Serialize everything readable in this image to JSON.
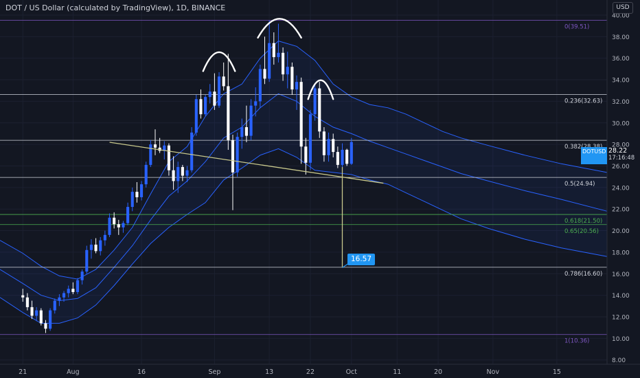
{
  "header": {
    "title": "DOT / US Dollar (calculated by TradingView), 1D, BINANCE",
    "currency": "USD"
  },
  "price_tag": {
    "symbol": "DOTUSD",
    "last_price": "28.22",
    "countdown": "17:16:48"
  },
  "target_callout": {
    "label": "16.57"
  },
  "colors": {
    "background": "#131722",
    "up": "#2962ff",
    "down": "#ffffff",
    "band": "#2962ff",
    "neckline": "#c8c88c",
    "fib_line": "#d1d4dc",
    "fib_green": "#4caf50",
    "fib_purple": "#7e57c2",
    "accent": "#2196f3"
  },
  "chart_data": {
    "type": "candlestick",
    "title": "DOT / US Dollar (calculated by TradingView), 1D, BINANCE",
    "y_axis": {
      "ticks": [
        "40.00",
        "38.00",
        "36.00",
        "34.00",
        "32.00",
        "30.00",
        "28.00",
        "26.00",
        "24.00",
        "22.00",
        "20.00",
        "18.00",
        "16.00",
        "14.00",
        "12.00",
        "10.00",
        "8.00"
      ],
      "range": [
        7.6,
        41.4
      ],
      "label": "USD"
    },
    "x_axis": {
      "ticks": [
        {
          "label": "21",
          "day": 0
        },
        {
          "label": "Aug",
          "day": 11
        },
        {
          "label": "16",
          "day": 26
        },
        {
          "label": "Sep",
          "day": 42
        },
        {
          "label": "13",
          "day": 54
        },
        {
          "label": "22",
          "day": 63
        },
        {
          "label": "Oct",
          "day": 72
        },
        {
          "label": "11",
          "day": 82
        },
        {
          "label": "20",
          "day": 91
        },
        {
          "label": "Nov",
          "day": 103
        },
        {
          "label": "15",
          "day": 117
        }
      ],
      "range_days": [
        -5,
        128
      ]
    },
    "fib_levels": [
      {
        "label": "0(39.51)",
        "value": 39.51,
        "style": "purple"
      },
      {
        "label": "0.236(32.63)",
        "value": 32.63,
        "style": "white"
      },
      {
        "label": "0.382(28.38)",
        "value": 28.38,
        "style": "white"
      },
      {
        "label": "0.5(24.94)",
        "value": 24.94,
        "style": "white"
      },
      {
        "label": "0.618(21.50)",
        "value": 21.5,
        "style": "green"
      },
      {
        "label": "0.65(20.56)",
        "value": 20.56,
        "style": "green"
      },
      {
        "label": "0.786(16.60)",
        "value": 16.6,
        "style": "white"
      },
      {
        "label": "1(10.36)",
        "value": 10.36,
        "style": "purple"
      }
    ],
    "neckline": {
      "start": {
        "day": 19,
        "value": 28.2
      },
      "end": {
        "day": 79,
        "value": 24.4
      }
    },
    "target_drop": {
      "day": 70,
      "from": 25.9,
      "to": 16.57
    },
    "candles": [
      {
        "o": 14.0,
        "h": 14.6,
        "l": 13.4,
        "c": 13.8
      },
      {
        "o": 13.8,
        "h": 14.2,
        "l": 12.6,
        "c": 12.9
      },
      {
        "o": 12.9,
        "h": 13.5,
        "l": 11.8,
        "c": 12.1
      },
      {
        "o": 12.1,
        "h": 12.9,
        "l": 11.6,
        "c": 12.6
      },
      {
        "o": 12.6,
        "h": 12.8,
        "l": 11.2,
        "c": 11.4
      },
      {
        "o": 11.4,
        "h": 11.7,
        "l": 10.5,
        "c": 10.9
      },
      {
        "o": 10.9,
        "h": 12.8,
        "l": 10.7,
        "c": 12.6
      },
      {
        "o": 12.6,
        "h": 13.7,
        "l": 12.3,
        "c": 13.5
      },
      {
        "o": 13.5,
        "h": 14.1,
        "l": 13.0,
        "c": 13.8
      },
      {
        "o": 13.8,
        "h": 14.4,
        "l": 13.4,
        "c": 14.2
      },
      {
        "o": 14.2,
        "h": 14.9,
        "l": 13.8,
        "c": 14.6
      },
      {
        "o": 14.6,
        "h": 15.2,
        "l": 14.1,
        "c": 14.3
      },
      {
        "o": 14.3,
        "h": 15.6,
        "l": 14.1,
        "c": 15.4
      },
      {
        "o": 15.4,
        "h": 16.4,
        "l": 15.0,
        "c": 16.2
      },
      {
        "o": 16.2,
        "h": 18.6,
        "l": 16.0,
        "c": 18.2
      },
      {
        "o": 18.2,
        "h": 19.2,
        "l": 17.4,
        "c": 18.7
      },
      {
        "o": 18.7,
        "h": 19.3,
        "l": 17.9,
        "c": 18.1
      },
      {
        "o": 18.1,
        "h": 19.4,
        "l": 17.7,
        "c": 19.1
      },
      {
        "o": 19.1,
        "h": 20.0,
        "l": 18.6,
        "c": 19.6
      },
      {
        "o": 19.6,
        "h": 21.6,
        "l": 19.4,
        "c": 21.2
      },
      {
        "o": 21.2,
        "h": 21.7,
        "l": 20.2,
        "c": 20.6
      },
      {
        "o": 20.6,
        "h": 21.0,
        "l": 19.6,
        "c": 20.3
      },
      {
        "o": 20.3,
        "h": 20.9,
        "l": 19.8,
        "c": 20.7
      },
      {
        "o": 20.7,
        "h": 22.6,
        "l": 20.5,
        "c": 22.2
      },
      {
        "o": 22.2,
        "h": 24.0,
        "l": 21.8,
        "c": 23.6
      },
      {
        "o": 23.6,
        "h": 24.5,
        "l": 22.6,
        "c": 23.1
      },
      {
        "o": 23.1,
        "h": 24.6,
        "l": 22.8,
        "c": 24.3
      },
      {
        "o": 24.3,
        "h": 26.4,
        "l": 24.0,
        "c": 26.1
      },
      {
        "o": 26.1,
        "h": 28.4,
        "l": 25.9,
        "c": 28.0
      },
      {
        "o": 28.0,
        "h": 29.4,
        "l": 27.0,
        "c": 27.7
      },
      {
        "o": 27.7,
        "h": 28.6,
        "l": 27.2,
        "c": 27.4
      },
      {
        "o": 27.4,
        "h": 28.3,
        "l": 26.6,
        "c": 27.9
      },
      {
        "o": 27.9,
        "h": 28.1,
        "l": 25.1,
        "c": 25.6
      },
      {
        "o": 25.6,
        "h": 26.9,
        "l": 23.8,
        "c": 24.6
      },
      {
        "o": 24.6,
        "h": 26.4,
        "l": 23.5,
        "c": 25.9
      },
      {
        "o": 25.9,
        "h": 26.1,
        "l": 24.6,
        "c": 25.1
      },
      {
        "o": 25.1,
        "h": 26.0,
        "l": 24.5,
        "c": 25.6
      },
      {
        "o": 25.6,
        "h": 29.6,
        "l": 25.4,
        "c": 29.1
      },
      {
        "o": 29.1,
        "h": 32.6,
        "l": 28.8,
        "c": 32.2
      },
      {
        "o": 32.2,
        "h": 33.1,
        "l": 30.4,
        "c": 30.8
      },
      {
        "o": 30.8,
        "h": 32.6,
        "l": 30.6,
        "c": 32.4
      },
      {
        "o": 32.4,
        "h": 33.6,
        "l": 31.8,
        "c": 32.9
      },
      {
        "o": 32.9,
        "h": 34.6,
        "l": 31.2,
        "c": 31.6
      },
      {
        "o": 31.6,
        "h": 34.7,
        "l": 31.4,
        "c": 34.3
      },
      {
        "o": 34.3,
        "h": 35.6,
        "l": 33.0,
        "c": 33.4
      },
      {
        "o": 33.4,
        "h": 36.4,
        "l": 27.5,
        "c": 28.4
      },
      {
        "o": 28.4,
        "h": 28.9,
        "l": 21.9,
        "c": 25.4
      },
      {
        "o": 25.4,
        "h": 29.1,
        "l": 25.0,
        "c": 28.7
      },
      {
        "o": 28.7,
        "h": 30.4,
        "l": 27.6,
        "c": 29.6
      },
      {
        "o": 29.6,
        "h": 31.6,
        "l": 28.2,
        "c": 28.8
      },
      {
        "o": 28.8,
        "h": 32.2,
        "l": 28.4,
        "c": 31.6
      },
      {
        "o": 31.6,
        "h": 33.3,
        "l": 30.6,
        "c": 32.0
      },
      {
        "o": 32.0,
        "h": 35.4,
        "l": 31.4,
        "c": 35.0
      },
      {
        "o": 35.0,
        "h": 38.0,
        "l": 33.6,
        "c": 34.1
      },
      {
        "o": 34.1,
        "h": 39.5,
        "l": 33.8,
        "c": 37.4
      },
      {
        "o": 37.4,
        "h": 38.4,
        "l": 35.4,
        "c": 36.1
      },
      {
        "o": 36.1,
        "h": 39.2,
        "l": 35.6,
        "c": 36.5
      },
      {
        "o": 36.5,
        "h": 37.0,
        "l": 33.9,
        "c": 34.5
      },
      {
        "o": 34.5,
        "h": 36.6,
        "l": 33.2,
        "c": 35.2
      },
      {
        "o": 35.2,
        "h": 35.6,
        "l": 32.6,
        "c": 33.1
      },
      {
        "o": 33.1,
        "h": 34.4,
        "l": 31.2,
        "c": 33.8
      },
      {
        "o": 33.8,
        "h": 34.2,
        "l": 26.2,
        "c": 27.8
      },
      {
        "o": 27.8,
        "h": 28.6,
        "l": 25.2,
        "c": 26.3
      },
      {
        "o": 26.3,
        "h": 31.2,
        "l": 25.6,
        "c": 30.8
      },
      {
        "o": 30.8,
        "h": 33.6,
        "l": 30.2,
        "c": 33.2
      },
      {
        "o": 33.2,
        "h": 33.8,
        "l": 28.6,
        "c": 29.2
      },
      {
        "o": 29.2,
        "h": 29.6,
        "l": 26.4,
        "c": 27.0
      },
      {
        "o": 27.0,
        "h": 29.1,
        "l": 26.4,
        "c": 28.5
      },
      {
        "o": 28.5,
        "h": 29.0,
        "l": 26.8,
        "c": 27.3
      },
      {
        "o": 27.3,
        "h": 27.8,
        "l": 25.8,
        "c": 26.1
      },
      {
        "o": 26.1,
        "h": 28.1,
        "l": 25.9,
        "c": 27.5
      },
      {
        "o": 27.5,
        "h": 27.6,
        "l": 26.0,
        "c": 26.2
      },
      {
        "o": 26.2,
        "h": 28.6,
        "l": 26.1,
        "c": 28.22
      }
    ],
    "bands": {
      "upper": [
        [
          -5,
          19.1
        ],
        [
          0,
          17.9
        ],
        [
          4,
          16.7
        ],
        [
          8,
          15.8
        ],
        [
          12,
          15.5
        ],
        [
          16,
          16.4
        ],
        [
          20,
          18.2
        ],
        [
          24,
          20.3
        ],
        [
          28,
          23.4
        ],
        [
          32,
          26.4
        ],
        [
          36,
          27.8
        ],
        [
          40,
          30.6
        ],
        [
          44,
          32.7
        ],
        [
          48,
          33.6
        ],
        [
          52,
          36.0
        ],
        [
          56,
          37.6
        ],
        [
          60,
          37.1
        ],
        [
          64,
          35.8
        ],
        [
          68,
          33.6
        ],
        [
          72,
          32.4
        ],
        [
          76,
          31.7
        ],
        [
          80,
          31.4
        ],
        [
          84,
          30.8
        ],
        [
          88,
          30.0
        ],
        [
          92,
          29.2
        ],
        [
          96,
          28.6
        ],
        [
          102,
          27.9
        ],
        [
          110,
          27.0
        ],
        [
          118,
          26.2
        ],
        [
          128,
          25.4
        ]
      ],
      "middle": [
        [
          -5,
          16.4
        ],
        [
          0,
          15.1
        ],
        [
          4,
          14.0
        ],
        [
          8,
          13.5
        ],
        [
          12,
          13.7
        ],
        [
          16,
          14.7
        ],
        [
          20,
          16.6
        ],
        [
          24,
          18.6
        ],
        [
          28,
          21.0
        ],
        [
          32,
          23.2
        ],
        [
          36,
          24.6
        ],
        [
          40,
          26.4
        ],
        [
          44,
          28.6
        ],
        [
          48,
          29.6
        ],
        [
          52,
          31.4
        ],
        [
          56,
          32.7
        ],
        [
          60,
          32.0
        ],
        [
          64,
          30.6
        ],
        [
          68,
          29.6
        ],
        [
          72,
          29.0
        ],
        [
          76,
          28.3
        ],
        [
          80,
          27.7
        ],
        [
          84,
          27.1
        ],
        [
          88,
          26.5
        ],
        [
          92,
          25.9
        ],
        [
          96,
          25.3
        ],
        [
          102,
          24.6
        ],
        [
          110,
          23.7
        ],
        [
          118,
          22.9
        ],
        [
          128,
          21.8
        ]
      ],
      "lower": [
        [
          -5,
          13.8
        ],
        [
          0,
          12.4
        ],
        [
          4,
          11.4
        ],
        [
          8,
          11.4
        ],
        [
          12,
          11.9
        ],
        [
          16,
          13.1
        ],
        [
          20,
          14.9
        ],
        [
          24,
          16.9
        ],
        [
          28,
          18.8
        ],
        [
          32,
          20.3
        ],
        [
          36,
          21.5
        ],
        [
          40,
          22.6
        ],
        [
          44,
          24.7
        ],
        [
          48,
          25.8
        ],
        [
          52,
          27.0
        ],
        [
          56,
          27.6
        ],
        [
          60,
          26.8
        ],
        [
          64,
          25.6
        ],
        [
          68,
          25.4
        ],
        [
          72,
          25.2
        ],
        [
          76,
          24.7
        ],
        [
          80,
          24.3
        ],
        [
          84,
          23.5
        ],
        [
          88,
          22.7
        ],
        [
          92,
          21.9
        ],
        [
          96,
          21.1
        ],
        [
          102,
          20.2
        ],
        [
          110,
          19.2
        ],
        [
          118,
          18.4
        ],
        [
          128,
          17.6
        ]
      ]
    }
  }
}
